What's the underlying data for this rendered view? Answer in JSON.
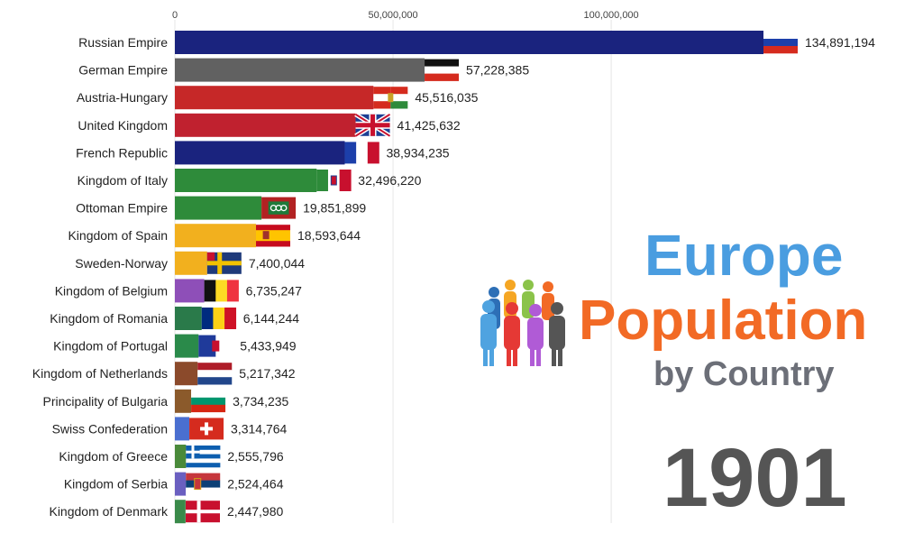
{
  "chart_data": {
    "type": "bar",
    "orientation": "horizontal",
    "xlim": [
      0,
      134891194
    ],
    "ticks": [
      {
        "value": 0,
        "label": "0"
      },
      {
        "value": 50000000,
        "label": "50,000,000"
      },
      {
        "value": 100000000,
        "label": "100,000,000"
      }
    ],
    "grid": true,
    "categories": [
      "Russian Empire",
      "German Empire",
      "Austria-Hungary",
      "United Kingdom",
      "French Republic",
      "Kingdom of Italy",
      "Ottoman Empire",
      "Kingdom of Spain",
      "Sweden-Norway",
      "Kingdom of Belgium",
      "Kingdom of Romania",
      "Kingdom of Portugal",
      "Kingdom of Netherlands",
      "Principality of Bulgaria",
      "Swiss Confederation",
      "Kingdom of Greece",
      "Kingdom of Serbia",
      "Kingdom of Denmark"
    ],
    "values": [
      134891194,
      57228385,
      45516035,
      41425632,
      38934235,
      32496220,
      19851899,
      18593644,
      7400044,
      6735247,
      6144244,
      5433949,
      5217342,
      3734235,
      3314764,
      2555796,
      2524464,
      2447980
    ],
    "value_labels": [
      "134,891,194",
      "57,228,385",
      "45,516,035",
      "41,425,632",
      "38,934,235",
      "32,496,220",
      "19,851,899",
      "18,593,644",
      "7,400,044",
      "6,735,247",
      "6,144,244",
      "5,433,949",
      "5,217,342",
      "3,734,235",
      "3,314,764",
      "2,555,796",
      "2,524,464",
      "2,447,980"
    ],
    "bar_colors": [
      "#1a237e",
      "#616161",
      "#c62828",
      "#c0212f",
      "#1a237e",
      "#2e8b3a",
      "#2e8b3a",
      "#f2b01e",
      "#f2b01e",
      "#8e4fb8",
      "#2a7a4a",
      "#2a8a4a",
      "#8b4a2b",
      "#8b5a2b",
      "#4a6fd0",
      "#4a8a3a",
      "#6a5fc0",
      "#3a8a4a"
    ],
    "flags": [
      "russia",
      "germany",
      "austria-hungary",
      "uk",
      "france",
      "italy",
      "ottoman",
      "spain",
      "sweden-norway",
      "belgium",
      "romania",
      "portugal",
      "netherlands",
      "bulgaria",
      "switzerland",
      "greece",
      "serbia",
      "denmark"
    ]
  },
  "title": {
    "line1": "Europe",
    "line2": "Population",
    "line3": "by Country"
  },
  "year": "1901"
}
